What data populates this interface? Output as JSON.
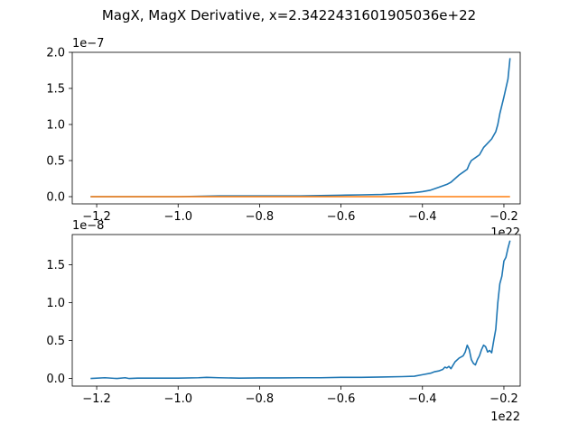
{
  "figure": {
    "suptitle": "MagX, MagX Derivative, x=2.3422431601905036e+22"
  },
  "chart_data": [
    {
      "type": "line",
      "title": "",
      "xlabel": "",
      "ylabel": "",
      "x_offset_label": "1e22",
      "y_offset_label": "1e−7",
      "xlim": [
        -1.26,
        -0.16
      ],
      "ylim": [
        -0.1,
        2.0
      ],
      "x_ticks": [
        -1.2,
        -1.0,
        -0.8,
        -0.6,
        -0.4,
        -0.2
      ],
      "x_tick_labels": [
        "−1.2",
        "−1.0",
        "−0.8",
        "−0.6",
        "−0.4",
        "−0.2"
      ],
      "y_ticks": [
        0.0,
        0.5,
        1.0,
        1.5,
        2.0
      ],
      "y_tick_labels": [
        "0.0",
        "0.5",
        "1.0",
        "1.5",
        "2.0"
      ],
      "grid": false,
      "series": [
        {
          "color": "#1f77b4",
          "x": [
            -1.215,
            -1.1,
            -1.0,
            -0.9,
            -0.8,
            -0.7,
            -0.6,
            -0.55,
            -0.5,
            -0.45,
            -0.42,
            -0.4,
            -0.38,
            -0.36,
            -0.34,
            -0.33,
            -0.32,
            -0.31,
            -0.3,
            -0.29,
            -0.285,
            -0.28,
            -0.27,
            -0.26,
            -0.25,
            -0.24,
            -0.23,
            -0.22,
            -0.215,
            -0.21,
            -0.2,
            -0.19,
            -0.185
          ],
          "y": [
            0.0,
            0.0,
            0.0,
            0.01,
            0.01,
            0.01,
            0.02,
            0.025,
            0.03,
            0.045,
            0.055,
            0.07,
            0.09,
            0.13,
            0.17,
            0.2,
            0.25,
            0.3,
            0.34,
            0.38,
            0.45,
            0.5,
            0.54,
            0.58,
            0.68,
            0.74,
            0.8,
            0.9,
            1.0,
            1.15,
            1.38,
            1.63,
            1.92
          ]
        },
        {
          "color": "#ff7f0e",
          "x": [
            -1.215,
            -0.185
          ],
          "y": [
            0.0,
            0.0
          ]
        }
      ]
    },
    {
      "type": "line",
      "title": "",
      "xlabel": "",
      "ylabel": "",
      "x_offset_label": "1e22",
      "y_offset_label": "1e−8",
      "xlim": [
        -1.26,
        -0.16
      ],
      "ylim": [
        -0.1,
        1.9
      ],
      "x_ticks": [
        -1.2,
        -1.0,
        -0.8,
        -0.6,
        -0.4,
        -0.2
      ],
      "x_tick_labels": [
        "−1.2",
        "−1.0",
        "−0.8",
        "−0.6",
        "−0.4",
        "−0.2"
      ],
      "y_ticks": [
        0.0,
        0.5,
        1.0,
        1.5
      ],
      "y_tick_labels": [
        "0.0",
        "0.5",
        "1.0",
        "1.5"
      ],
      "grid": false,
      "series": [
        {
          "color": "#1f77b4",
          "x": [
            -1.215,
            -1.18,
            -1.15,
            -1.13,
            -1.12,
            -1.1,
            -1.05,
            -1.0,
            -0.95,
            -0.93,
            -0.9,
            -0.85,
            -0.8,
            -0.75,
            -0.7,
            -0.65,
            -0.6,
            -0.55,
            -0.5,
            -0.45,
            -0.42,
            -0.4,
            -0.38,
            -0.37,
            -0.36,
            -0.35,
            -0.345,
            -0.34,
            -0.335,
            -0.33,
            -0.32,
            -0.31,
            -0.3,
            -0.295,
            -0.29,
            -0.285,
            -0.28,
            -0.275,
            -0.27,
            -0.265,
            -0.26,
            -0.255,
            -0.25,
            -0.245,
            -0.24,
            -0.235,
            -0.23,
            -0.225,
            -0.22,
            -0.215,
            -0.21,
            -0.205,
            -0.2,
            -0.195,
            -0.19,
            -0.185
          ],
          "y": [
            0.0,
            0.01,
            0.0,
            0.01,
            0.0,
            0.005,
            0.005,
            0.005,
            0.01,
            0.015,
            0.01,
            0.005,
            0.008,
            0.008,
            0.01,
            0.01,
            0.015,
            0.015,
            0.02,
            0.025,
            0.03,
            0.05,
            0.07,
            0.09,
            0.1,
            0.12,
            0.15,
            0.14,
            0.16,
            0.13,
            0.22,
            0.27,
            0.3,
            0.35,
            0.44,
            0.38,
            0.25,
            0.2,
            0.18,
            0.25,
            0.3,
            0.38,
            0.44,
            0.42,
            0.35,
            0.37,
            0.34,
            0.5,
            0.65,
            1.0,
            1.25,
            1.35,
            1.55,
            1.6,
            1.72,
            1.82
          ]
        }
      ]
    }
  ]
}
